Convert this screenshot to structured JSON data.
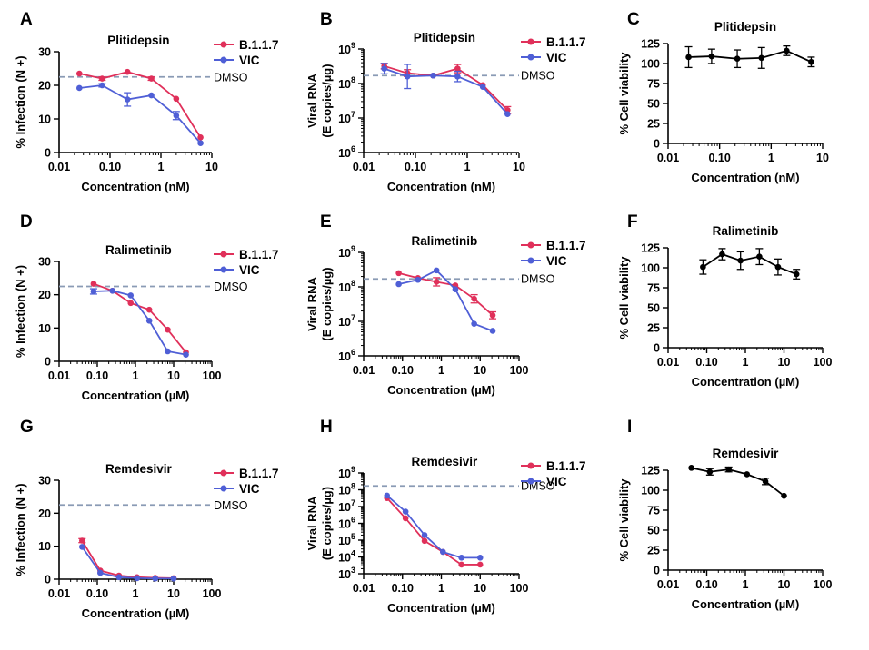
{
  "colors": {
    "b117": "#e0305a",
    "vic": "#4f5fd6",
    "viability": "#000000",
    "dmso": "#8a9bb5"
  },
  "chart_data": [
    {
      "panel": "A",
      "type": "line",
      "title": "Plitidepsin",
      "xlabel": "Concentration (nM)",
      "ylabel": "% Infection (N +)",
      "xscale": "log",
      "xlim": [
        0.01,
        10
      ],
      "xticks": [
        0.01,
        0.1,
        1,
        10
      ],
      "xtick_labels": [
        "0.01",
        "0.10",
        "1",
        "10"
      ],
      "yscale": "linear",
      "ylim": [
        0,
        30
      ],
      "yticks": [
        0,
        10,
        20,
        30
      ],
      "ytick_labels": [
        "0",
        "10",
        "20",
        "30"
      ],
      "reference": {
        "label": "DMSO",
        "value": 22.5
      },
      "legend": "top-right",
      "series": [
        {
          "name": "B.1.1.7",
          "color": "#e0305a",
          "x": [
            0.025,
            0.07,
            0.22,
            0.65,
            2,
            6
          ],
          "y": [
            23.5,
            22,
            24,
            22,
            16,
            4.5
          ],
          "err": [
            0,
            0.5,
            0,
            0.5,
            0,
            0
          ]
        },
        {
          "name": "VIC",
          "color": "#4f5fd6",
          "x": [
            0.025,
            0.07,
            0.22,
            0.65,
            2,
            6
          ],
          "y": [
            19.2,
            20,
            15.8,
            17,
            11,
            2.8
          ],
          "err": [
            0,
            0.5,
            2,
            0,
            1.2,
            0
          ]
        }
      ]
    },
    {
      "panel": "B",
      "type": "line",
      "title": "Plitidepsin",
      "xlabel": "Concentration (nM)",
      "ylabel": [
        "Viral RNA",
        "(E copies/µg)"
      ],
      "xscale": "log",
      "xlim": [
        0.01,
        10
      ],
      "xticks": [
        0.01,
        0.1,
        1,
        10
      ],
      "xtick_labels": [
        "0.01",
        "0.10",
        "1",
        "10"
      ],
      "yscale": "log",
      "ylim": [
        1000000,
        1000000000
      ],
      "yticks": [
        1000000,
        10000000,
        100000000,
        1000000000
      ],
      "ytick_labels": [
        {
          "base": "10",
          "exp": "6"
        },
        {
          "base": "10",
          "exp": "7"
        },
        {
          "base": "10",
          "exp": "8"
        },
        {
          "base": "10",
          "exp": "9"
        }
      ],
      "reference": {
        "label": "DMSO",
        "value": 170000000
      },
      "legend": "top-right",
      "series": [
        {
          "name": "B.1.1.7",
          "color": "#e0305a",
          "x": [
            0.025,
            0.07,
            0.22,
            0.65,
            2,
            6
          ],
          "y": [
            320000000,
            200000000,
            170000000,
            270000000,
            90000000,
            17000000
          ],
          "err_log": [
            0.08,
            0.1,
            0,
            0.12,
            0,
            0.1
          ]
        },
        {
          "name": "VIC",
          "color": "#4f5fd6",
          "x": [
            0.025,
            0.07,
            0.22,
            0.65,
            2,
            6
          ],
          "y": [
            270000000,
            160000000,
            170000000,
            160000000,
            80000000,
            13000000
          ],
          "err_log": [
            0.15,
            0.35,
            0,
            0.15,
            0,
            0
          ]
        }
      ]
    },
    {
      "panel": "C",
      "type": "line",
      "title": "Plitidepsin",
      "xlabel": "Concentration (nM)",
      "ylabel": "% Cell viability",
      "xscale": "log",
      "xlim": [
        0.01,
        10
      ],
      "xticks": [
        0.01,
        0.1,
        1,
        10
      ],
      "xtick_labels": [
        "0.01",
        "0.10",
        "1",
        "10"
      ],
      "yscale": "linear",
      "ylim": [
        0,
        125
      ],
      "yticks": [
        0,
        25,
        50,
        75,
        100,
        125
      ],
      "ytick_labels": [
        "0",
        "25",
        "50",
        "75",
        "100",
        "125"
      ],
      "series": [
        {
          "color": "#000000",
          "x": [
            0.025,
            0.07,
            0.22,
            0.65,
            2,
            6
          ],
          "y": [
            108,
            109,
            106,
            107,
            116,
            102
          ],
          "err": [
            13,
            9,
            11,
            13,
            6,
            6
          ]
        }
      ]
    },
    {
      "panel": "D",
      "type": "line",
      "title": "Ralimetinib",
      "xlabel": "Concentration (µM)",
      "ylabel": "% Infection (N +)",
      "xscale": "log",
      "xlim": [
        0.01,
        100
      ],
      "xticks": [
        0.01,
        0.1,
        1,
        10,
        100
      ],
      "xtick_labels": [
        "0.01",
        "0.10",
        "1",
        "10",
        "100"
      ],
      "yscale": "linear",
      "ylim": [
        0,
        30
      ],
      "yticks": [
        0,
        10,
        20,
        30
      ],
      "ytick_labels": [
        "0",
        "10",
        "20",
        "30"
      ],
      "reference": {
        "label": "DMSO",
        "value": 22.5
      },
      "legend": "top-right",
      "series": [
        {
          "name": "B.1.1.7",
          "color": "#e0305a",
          "x": [
            0.08,
            0.25,
            0.75,
            2.3,
            7,
            21
          ],
          "y": [
            23.3,
            21.2,
            17.5,
            15.5,
            9.5,
            2.7
          ],
          "err": [
            0,
            0,
            0,
            0,
            0,
            0
          ]
        },
        {
          "name": "VIC",
          "color": "#4f5fd6",
          "x": [
            0.08,
            0.25,
            0.75,
            2.3,
            7,
            21
          ],
          "y": [
            21,
            21.2,
            19.8,
            12.2,
            3,
            2
          ],
          "err": [
            0.8,
            0,
            0,
            0,
            0,
            0
          ]
        }
      ]
    },
    {
      "panel": "E",
      "type": "line",
      "title": "Ralimetinib",
      "xlabel": "Concentration (µM)",
      "ylabel": [
        "Viral RNA",
        "(E copies/µg)"
      ],
      "xscale": "log",
      "xlim": [
        0.01,
        100
      ],
      "xticks": [
        0.01,
        0.1,
        1,
        10,
        100
      ],
      "xtick_labels": [
        "0.01",
        "0.10",
        "1",
        "10",
        "100"
      ],
      "yscale": "log",
      "ylim": [
        1000000,
        1000000000
      ],
      "yticks": [
        1000000,
        10000000,
        100000000,
        1000000000
      ],
      "ytick_labels": [
        {
          "base": "10",
          "exp": "6"
        },
        {
          "base": "10",
          "exp": "7"
        },
        {
          "base": "10",
          "exp": "8"
        },
        {
          "base": "10",
          "exp": "9"
        }
      ],
      "reference": {
        "label": "DMSO",
        "value": 170000000
      },
      "legend": "top-right",
      "series": [
        {
          "name": "B.1.1.7",
          "color": "#e0305a",
          "x": [
            0.08,
            0.25,
            0.75,
            2.3,
            7,
            21
          ],
          "y": [
            250000000,
            180000000,
            140000000,
            110000000,
            45000000,
            15000000
          ],
          "err_log": [
            0,
            0,
            0.12,
            0,
            0.12,
            0.1
          ]
        },
        {
          "name": "VIC",
          "color": "#4f5fd6",
          "x": [
            0.08,
            0.25,
            0.75,
            2.3,
            7,
            21
          ],
          "y": [
            120000000,
            160000000,
            300000000,
            85000000,
            8500000,
            5300000
          ],
          "err_log": [
            0,
            0,
            0,
            0,
            0,
            0
          ]
        }
      ]
    },
    {
      "panel": "F",
      "type": "line",
      "title": "Ralimetinib",
      "xlabel": "Concentration (µM)",
      "ylabel": "% Cell viability",
      "xscale": "log",
      "xlim": [
        0.01,
        100
      ],
      "xticks": [
        0.01,
        0.1,
        1,
        10,
        100
      ],
      "xtick_labels": [
        "0.01",
        "0.10",
        "1",
        "10",
        "100"
      ],
      "yscale": "linear",
      "ylim": [
        0,
        125
      ],
      "yticks": [
        0,
        25,
        50,
        75,
        100,
        125
      ],
      "ytick_labels": [
        "0",
        "25",
        "50",
        "75",
        "100",
        "125"
      ],
      "series": [
        {
          "color": "#000000",
          "x": [
            0.08,
            0.25,
            0.75,
            2.3,
            7,
            21
          ],
          "y": [
            101,
            117,
            109,
            114,
            101,
            92
          ],
          "err": [
            9,
            7,
            11,
            10,
            10,
            6
          ]
        }
      ]
    },
    {
      "panel": "G",
      "type": "line",
      "title": "Remdesivir",
      "xlabel": "Concentration (µM)",
      "ylabel": "% Infection (N +)",
      "xscale": "log",
      "xlim": [
        0.01,
        100
      ],
      "xticks": [
        0.01,
        0.1,
        1,
        10,
        100
      ],
      "xtick_labels": [
        "0.01",
        "0.10",
        "1",
        "10",
        "100"
      ],
      "yscale": "linear",
      "ylim": [
        0,
        30
      ],
      "yticks": [
        0,
        10,
        20,
        30
      ],
      "ytick_labels": [
        "0",
        "10",
        "20",
        "30"
      ],
      "reference": {
        "label": "DMSO",
        "value": 22.5
      },
      "legend": "top-right",
      "series": [
        {
          "name": "B.1.1.7",
          "color": "#e0305a",
          "x": [
            0.04,
            0.12,
            0.37,
            1.1,
            3.3,
            10
          ],
          "y": [
            11.7,
            2.6,
            1.1,
            0.6,
            0.4,
            0.3
          ],
          "err": [
            0.6,
            0,
            0,
            0,
            0,
            0
          ]
        },
        {
          "name": "VIC",
          "color": "#4f5fd6",
          "x": [
            0.04,
            0.12,
            0.37,
            1.1,
            3.3,
            10
          ],
          "y": [
            9.8,
            1.9,
            0.6,
            0.3,
            0.2,
            0.2
          ],
          "err": [
            0,
            0,
            0,
            0,
            0,
            0
          ]
        }
      ]
    },
    {
      "panel": "H",
      "type": "line",
      "title": "Remdesivir",
      "xlabel": "Concentration (µM)",
      "ylabel": [
        "Viral RNA",
        "(E copies/µg)"
      ],
      "xscale": "log",
      "xlim": [
        0.01,
        100
      ],
      "xticks": [
        0.01,
        0.1,
        1,
        10,
        100
      ],
      "xtick_labels": [
        "0.01",
        "0.10",
        "1",
        "10",
        "100"
      ],
      "yscale": "log",
      "ylim": [
        1000,
        1000000000
      ],
      "yticks": [
        1000,
        10000,
        100000,
        1000000,
        10000000,
        100000000,
        1000000000
      ],
      "ytick_labels": [
        {
          "base": "10",
          "exp": "3"
        },
        {
          "base": "10",
          "exp": "4"
        },
        {
          "base": "10",
          "exp": "5"
        },
        {
          "base": "10",
          "exp": "6"
        },
        {
          "base": "10",
          "exp": "7"
        },
        {
          "base": "10",
          "exp": "8"
        },
        {
          "base": "10",
          "exp": "9"
        }
      ],
      "reference": {
        "label": "DMSO",
        "value": 170000000
      },
      "legend": "top-right",
      "series": [
        {
          "name": "B.1.1.7",
          "color": "#e0305a",
          "x": [
            0.04,
            0.12,
            0.37,
            1.1,
            3.3,
            10
          ],
          "y": [
            32000000,
            2000000,
            90000,
            20000,
            3500,
            3500
          ],
          "err_log": [
            0,
            0,
            0,
            0,
            0,
            0
          ]
        },
        {
          "name": "VIC",
          "color": "#4f5fd6",
          "x": [
            0.04,
            0.12,
            0.37,
            1.1,
            3.3,
            10
          ],
          "y": [
            45000000,
            5000000,
            200000,
            20000,
            9000,
            9000
          ],
          "err_log": [
            0,
            0,
            0,
            0,
            0,
            0
          ]
        }
      ]
    },
    {
      "panel": "I",
      "type": "line",
      "title": "Remdesivir",
      "xlabel": "Concentration (µM)",
      "ylabel": "% Cell viability",
      "xscale": "log",
      "xlim": [
        0.01,
        100
      ],
      "xticks": [
        0.01,
        0.1,
        1,
        10,
        100
      ],
      "xtick_labels": [
        "0.01",
        "0.10",
        "1",
        "10",
        "100"
      ],
      "yscale": "linear",
      "ylim": [
        0,
        125
      ],
      "yticks": [
        0,
        25,
        50,
        75,
        100,
        125
      ],
      "ytick_labels": [
        "0",
        "25",
        "50",
        "75",
        "100",
        "125"
      ],
      "series": [
        {
          "color": "#000000",
          "x": [
            0.04,
            0.12,
            0.37,
            1.1,
            3.3,
            10
          ],
          "y": [
            128,
            123,
            126,
            120,
            111,
            93
          ],
          "err": [
            0,
            4,
            3,
            0,
            4,
            0
          ]
        }
      ]
    }
  ]
}
